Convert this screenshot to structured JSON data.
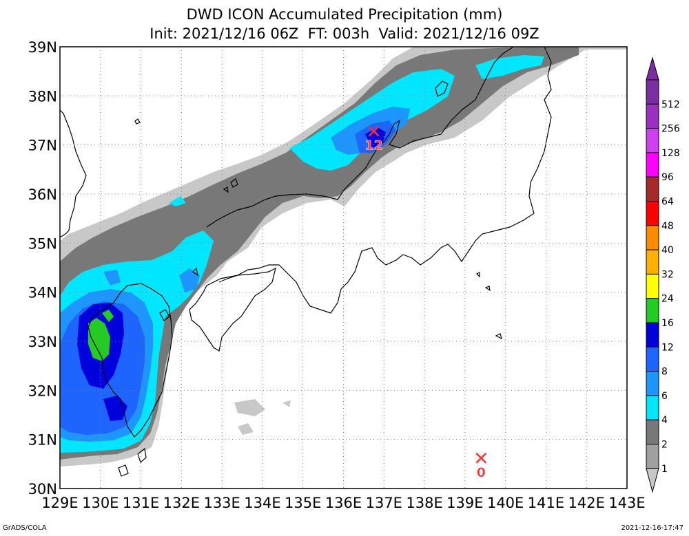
{
  "title": "DWD ICON Accumulated Precipitation (mm)",
  "subtitle": "Init: 2021/12/16 06Z  FT: 003h  Valid: 2021/12/16 09Z",
  "lat_labels": [
    "39N",
    "38N",
    "37N",
    "36N",
    "35N",
    "34N",
    "33N",
    "32N",
    "31N",
    "30N"
  ],
  "lon_labels": [
    "129E",
    "130E",
    "131E",
    "132E",
    "133E",
    "134E",
    "135E",
    "136E",
    "137E",
    "138E",
    "139E",
    "140E",
    "141E",
    "142E",
    "143E"
  ],
  "colorbar": [
    {
      "label": "512",
      "color": "#7b2ea0"
    },
    {
      "label": "256",
      "color": "#9b30c0"
    },
    {
      "label": "128",
      "color": "#d040f0"
    },
    {
      "label": "96",
      "color": "#ff00ff"
    },
    {
      "label": "64",
      "color": "#a52a2a"
    },
    {
      "label": "48",
      "color": "#ff0000"
    },
    {
      "label": "40",
      "color": "#ff8c00"
    },
    {
      "label": "32",
      "color": "#ffb000"
    },
    {
      "label": "24",
      "color": "#ffff00"
    },
    {
      "label": "16",
      "color": "#22cc22"
    },
    {
      "label": "12",
      "color": "#0000dd"
    },
    {
      "label": "8",
      "color": "#1e64ff"
    },
    {
      "label": "6",
      "color": "#1e96ff"
    },
    {
      "label": "4",
      "color": "#00e6ff"
    },
    {
      "label": "2",
      "color": "#787878"
    },
    {
      "label": "1",
      "color": "#a0a0a0"
    },
    {
      "label": "",
      "color": "#c8c8c8"
    }
  ],
  "markers": [
    {
      "lon": 136.75,
      "lat": 37.28,
      "label": "12"
    },
    {
      "lon": 139.4,
      "lat": 30.62,
      "label": "0"
    }
  ],
  "footer_left": "GrADS/COLA",
  "footer_right": "2021-12-16-17:47"
}
